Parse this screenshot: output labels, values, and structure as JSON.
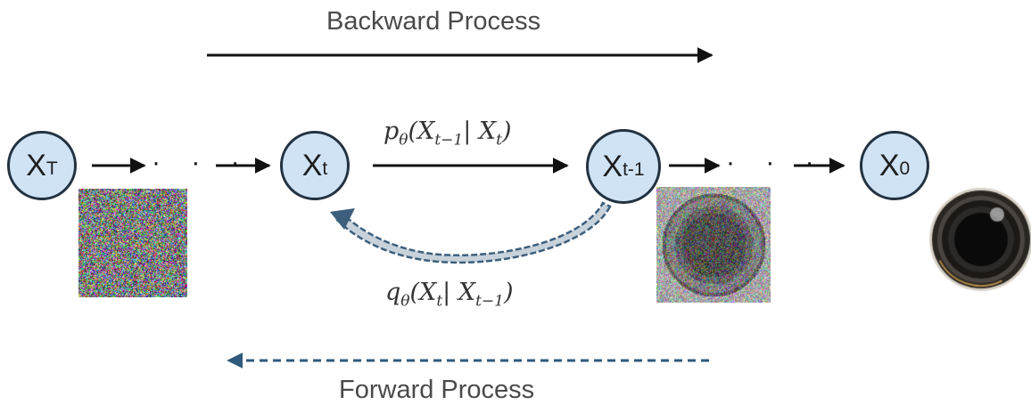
{
  "labels": {
    "backward_process": "Backward Process",
    "forward_process": "Forward Process",
    "dots": "· · ·"
  },
  "nodes": {
    "xT": {
      "base": "X",
      "sub": "T"
    },
    "xt": {
      "base": "X",
      "sub": "t"
    },
    "xt1": {
      "base": "X",
      "sub": "t-1"
    },
    "x0": {
      "base": "X",
      "sub": "0"
    }
  },
  "formulas": {
    "reverse": {
      "func": "p",
      "func_sub": "θ",
      "open": "(",
      "arg1": "X",
      "arg1_sub": "t−1",
      "sep": "| ",
      "arg2": "X",
      "arg2_sub": "t",
      "close": ")"
    },
    "forward": {
      "func": "q",
      "func_sub": "θ",
      "open": "(",
      "arg1": "X",
      "arg1_sub": "t",
      "sep": "| ",
      "arg2": "X",
      "arg2_sub": "t−1",
      "close": ")"
    }
  },
  "colors": {
    "node_fill": "#cfe3f5",
    "node_stroke": "#233241",
    "arrow_solid": "#111111",
    "arrow_dashed": "#2f5a7c",
    "text": "#444444"
  }
}
